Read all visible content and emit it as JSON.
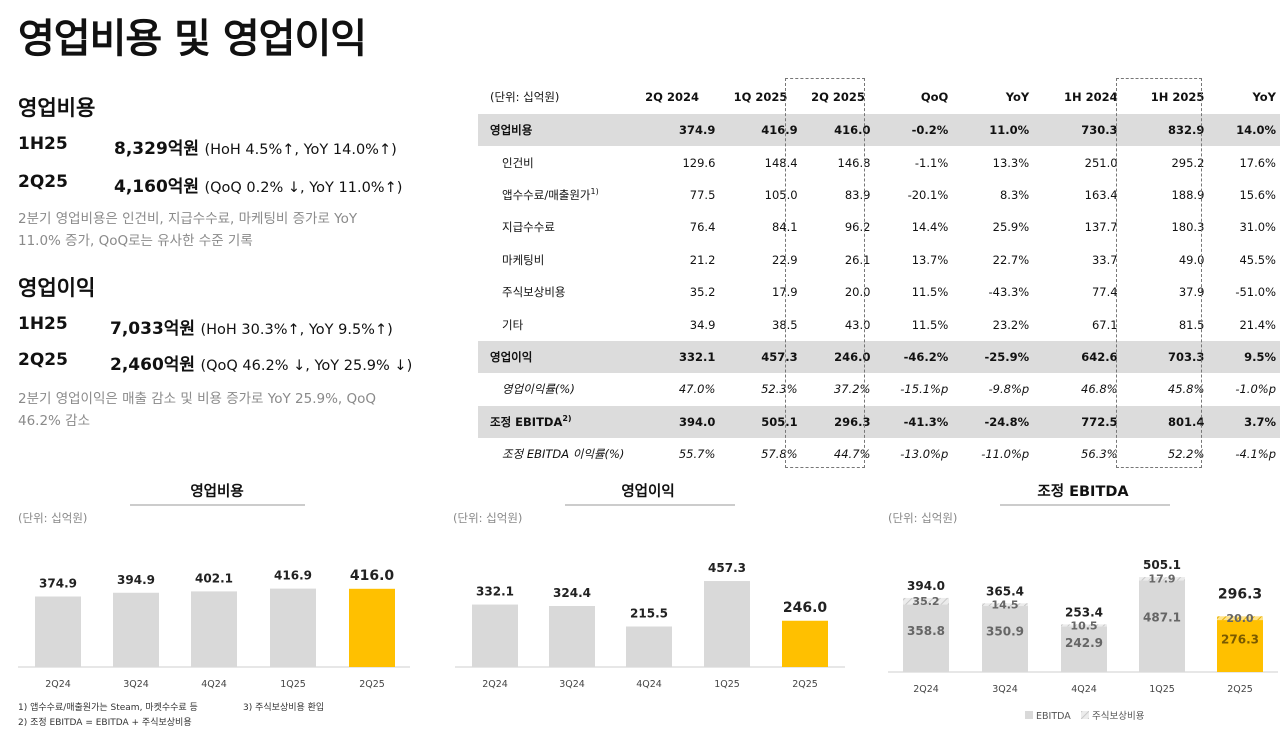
{
  "page": {
    "title": "영업비용 및 영업이익"
  },
  "opex": {
    "heading": "영업비용",
    "row1": {
      "period": "1H25",
      "amount": "8,329억원",
      "detail": "(HoH 4.5%↑, YoY 14.0%↑)"
    },
    "row2": {
      "period": "2Q25",
      "amount": "4,160억원",
      "detail": "(QoQ 0.2% ↓, YoY 11.0%↑)"
    },
    "note": "2분기 영업비용은 인건비, 지급수수료, 마케팅비 증가로 YoY 11.0% 증가, QoQ로는 유사한 수준 기록"
  },
  "op": {
    "heading": "영업이익",
    "row1": {
      "period": "1H25",
      "amount": "7,033억원",
      "detail": "(HoH 30.3%↑, YoY 9.5%↑)"
    },
    "row2": {
      "period": "2Q25",
      "amount": "2,460억원",
      "detail": "(QoQ 46.2% ↓, YoY 25.9% ↓)"
    },
    "note": "2분기 영업이익은 매출 감소 및 비용 증가로 YoY 25.9%, QoQ 46.2% 감소"
  },
  "table": {
    "unit_label": "(단위: 십억원)",
    "headers": [
      "2Q 2024",
      "1Q 2025",
      "2Q 2025",
      "QoQ",
      "YoY",
      "1H 2024",
      "1H 2025",
      "YoY"
    ],
    "rows": [
      {
        "label": "영업비용",
        "values": [
          "374.9",
          "416.9",
          "416.0",
          "-0.2%",
          "11.0%",
          "730.3",
          "832.9",
          "14.0%"
        ]
      },
      {
        "label": "인건비",
        "values": [
          "129.6",
          "148.4",
          "146.8",
          "-1.1%",
          "13.3%",
          "251.0",
          "295.2",
          "17.6%"
        ]
      },
      {
        "label": "앱수수료/매출원가",
        "sup": "1)",
        "values": [
          "77.5",
          "105.0",
          "83.9",
          "-20.1%",
          "8.3%",
          "163.4",
          "188.9",
          "15.6%"
        ]
      },
      {
        "label": "지급수수료",
        "values": [
          "76.4",
          "84.1",
          "96.2",
          "14.4%",
          "25.9%",
          "137.7",
          "180.3",
          "31.0%"
        ]
      },
      {
        "label": "마케팅비",
        "values": [
          "21.2",
          "22.9",
          "26.1",
          "13.7%",
          "22.7%",
          "33.7",
          "49.0",
          "45.5%"
        ]
      },
      {
        "label": "주식보상비용",
        "values": [
          "35.2",
          "17.9",
          "20.0",
          "11.5%",
          "-43.3%",
          "77.4",
          "37.9",
          "-51.0%"
        ]
      },
      {
        "label": "기타",
        "values": [
          "34.9",
          "38.5",
          "43.0",
          "11.5%",
          "23.2%",
          "67.1",
          "81.5",
          "21.4%"
        ]
      },
      {
        "label": "영업이익",
        "values": [
          "332.1",
          "457.3",
          "246.0",
          "-46.2%",
          "-25.9%",
          "642.6",
          "703.3",
          "9.5%"
        ]
      },
      {
        "label": "영업이익률(%)",
        "values": [
          "47.0%",
          "52.3%",
          "37.2%",
          "-15.1%p",
          "-9.8%p",
          "46.8%",
          "45.8%",
          "-1.0%p"
        ]
      },
      {
        "label": "조정 EBITDA",
        "sup": "2)",
        "values": [
          "394.0",
          "505.1",
          "296.3",
          "-41.3%",
          "-24.8%",
          "772.5",
          "801.4",
          "3.7%"
        ]
      },
      {
        "label": "조정 EBITDA 이익률(%)",
        "values": [
          "55.7%",
          "57.8%",
          "44.7%",
          "-13.0%p",
          "-11.0%p",
          "56.3%",
          "52.2%",
          "-4.1%p"
        ]
      }
    ]
  },
  "chart_data": [
    {
      "type": "bar",
      "title": "영업비용",
      "unit": "(단위: 십억원)",
      "categories": [
        "2Q24",
        "3Q24",
        "4Q24",
        "1Q25",
        "2Q25"
      ],
      "values": [
        374.9,
        394.9,
        402.1,
        416.9,
        416.0
      ],
      "labels": [
        "374.9",
        "394.9",
        "402.1",
        "416.9",
        "416.0"
      ],
      "colors": [
        "#d9d9d9",
        "#d9d9d9",
        "#d9d9d9",
        "#d9d9d9",
        "#ffc000"
      ],
      "ylim": [
        0,
        560
      ]
    },
    {
      "type": "bar",
      "title": "영업이익",
      "unit": "(단위: 십억원)",
      "categories": [
        "2Q24",
        "3Q24",
        "4Q24",
        "1Q25",
        "2Q25"
      ],
      "values": [
        332.1,
        324.4,
        215.5,
        457.3,
        246.0
      ],
      "labels": [
        "332.1",
        "324.4",
        "215.5",
        "457.3",
        "246.0"
      ],
      "colors": [
        "#d9d9d9",
        "#d9d9d9",
        "#d9d9d9",
        "#d9d9d9",
        "#ffc000"
      ],
      "ylim": [
        0,
        560
      ]
    },
    {
      "type": "bar",
      "title": "조정 EBITDA",
      "unit": "(단위: 십억원)",
      "stacked": true,
      "categories": [
        "2Q24",
        "3Q24",
        "4Q24",
        "1Q25",
        "2Q25"
      ],
      "series": [
        {
          "name": "EBITDA",
          "values": [
            358.8,
            350.9,
            242.9,
            487.1,
            276.3
          ],
          "labels": [
            "358.8",
            "350.9",
            "242.9",
            "487.1",
            "276.3"
          ]
        },
        {
          "name": "주식보상비용",
          "values": [
            35.2,
            14.5,
            10.5,
            17.9,
            20.0
          ],
          "labels": [
            "35.2",
            "14.5",
            "10.5",
            "17.9",
            "20.0"
          ]
        }
      ],
      "totals": [
        "394.0",
        "365.4",
        "253.4",
        "505.1",
        "296.3"
      ],
      "highlight_color": "#ffc000",
      "base_color": "#d9d9d9",
      "ylim": [
        0,
        560
      ]
    }
  ],
  "footnotes": {
    "f1": "1) 앱수수료/매출원가는 Steam, 마켓수수료 등",
    "f2": "2) 조정 EBITDA = EBITDA + 주식보상비용",
    "f3": "3) 주식보상비용 환입"
  }
}
